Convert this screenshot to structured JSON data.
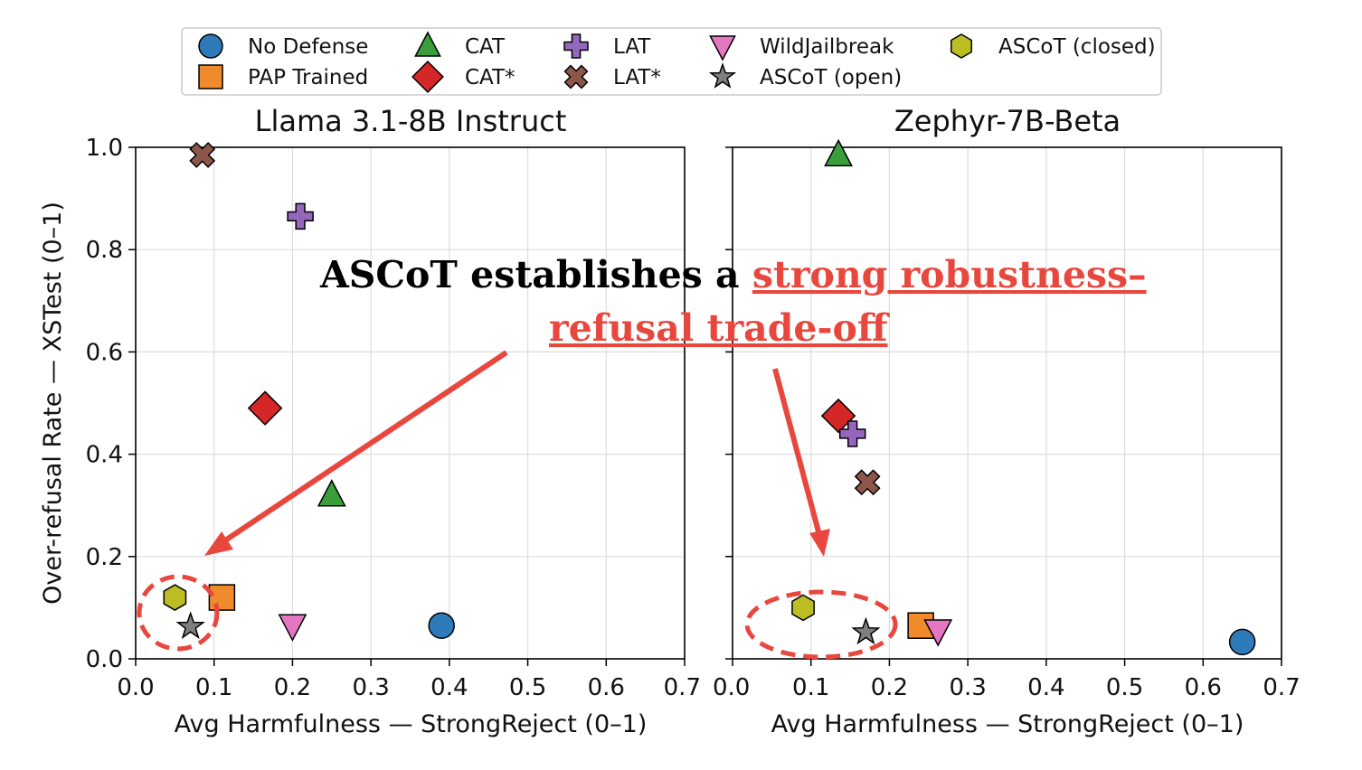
{
  "legend": {
    "entries": [
      {
        "name": "No Defense",
        "marker": "circle-marker",
        "color": "#2f7ab9"
      },
      {
        "name": "CAT",
        "marker": "triangle-up-marker",
        "color": "#3a9e3a"
      },
      {
        "name": "LAT",
        "marker": "plus-marker",
        "color": "#9467bd"
      },
      {
        "name": "WildJailbreak",
        "marker": "triangle-down-marker",
        "color": "#e377c2"
      },
      {
        "name": "ASCoT (closed)",
        "marker": "hexagon-marker",
        "color": "#bcbd22"
      },
      {
        "name": "PAP Trained",
        "marker": "square-marker",
        "color": "#f08a2c"
      },
      {
        "name": "CAT*",
        "marker": "diamond-marker",
        "color": "#d62728"
      },
      {
        "name": "LAT*",
        "marker": "x-marker",
        "color": "#8c564b"
      },
      {
        "name": "ASCoT (open)",
        "marker": "star-marker",
        "color": "#7f7f7f"
      }
    ]
  },
  "callout": {
    "part1": "ASCoT establishes a ",
    "part2": "strong robustness–",
    "part3": "refusal trade-off",
    "highlight_color": "#e8473e"
  },
  "chart_data": [
    {
      "type": "scatter",
      "title": "Llama 3.1-8B Instruct",
      "xlabel": "Avg Harmfulness — StrongReject (0–1)",
      "ylabel": "Over-refusal Rate — XSTest (0–1)",
      "xlim": [
        0.0,
        0.7
      ],
      "ylim": [
        0.0,
        1.0
      ],
      "xticks": [
        "0.0",
        "0.1",
        "0.2",
        "0.3",
        "0.4",
        "0.5",
        "0.6",
        "0.7"
      ],
      "yticks": [
        "0.0",
        "0.2",
        "0.4",
        "0.6",
        "0.8",
        "1.0"
      ],
      "grid": true,
      "points": [
        {
          "series": "No Defense",
          "x": 0.39,
          "y": 0.065
        },
        {
          "series": "PAP Trained",
          "x": 0.11,
          "y": 0.12
        },
        {
          "series": "CAT",
          "x": 0.25,
          "y": 0.32
        },
        {
          "series": "CAT*",
          "x": 0.165,
          "y": 0.49
        },
        {
          "series": "LAT",
          "x": 0.21,
          "y": 0.865
        },
        {
          "series": "LAT*",
          "x": 0.085,
          "y": 0.985
        },
        {
          "series": "WildJailbreak",
          "x": 0.2,
          "y": 0.065
        },
        {
          "series": "ASCoT (open)",
          "x": 0.07,
          "y": 0.063
        },
        {
          "series": "ASCoT (closed)",
          "x": 0.05,
          "y": 0.12
        }
      ]
    },
    {
      "type": "scatter",
      "title": "Zephyr-7B-Beta",
      "xlabel": "Avg Harmfulness — StrongReject (0–1)",
      "ylabel": "",
      "xlim": [
        0.0,
        0.7
      ],
      "ylim": [
        0.0,
        1.0
      ],
      "xticks": [
        "0.0",
        "0.1",
        "0.2",
        "0.3",
        "0.4",
        "0.5",
        "0.6",
        "0.7"
      ],
      "yticks": [],
      "grid": true,
      "points": [
        {
          "series": "No Defense",
          "x": 0.65,
          "y": 0.033
        },
        {
          "series": "PAP Trained",
          "x": 0.24,
          "y": 0.065
        },
        {
          "series": "CAT",
          "x": 0.135,
          "y": 0.985
        },
        {
          "series": "CAT*",
          "x": 0.135,
          "y": 0.475
        },
        {
          "series": "LAT",
          "x": 0.153,
          "y": 0.44
        },
        {
          "series": "LAT*",
          "x": 0.172,
          "y": 0.345
        },
        {
          "series": "WildJailbreak",
          "x": 0.262,
          "y": 0.055
        },
        {
          "series": "ASCoT (open)",
          "x": 0.17,
          "y": 0.052
        },
        {
          "series": "ASCoT (closed)",
          "x": 0.09,
          "y": 0.1
        }
      ]
    }
  ]
}
